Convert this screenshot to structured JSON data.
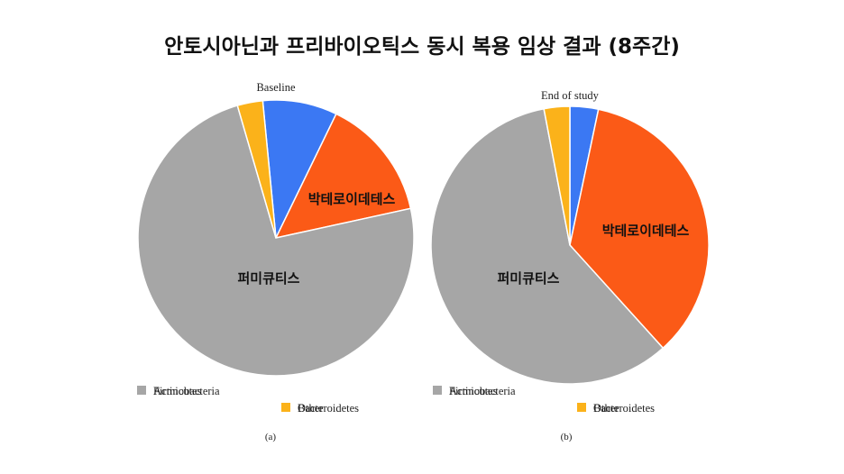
{
  "title": "안토시아닌과 프리바이오틱스 동시 복용 임상 결과 (8주간)",
  "chart_data": [
    {
      "type": "pie",
      "title": "Baseline",
      "panel_label": "(a)",
      "start_angle_deg": -5.5,
      "direction": "clockwise",
      "legend_position": "bottom",
      "slices": [
        {
          "name": "Actinobacteria",
          "value": 8.5,
          "color": "#3b78f3",
          "label": ""
        },
        {
          "name": "Bacteroidetes",
          "value": 14.0,
          "color": "#fb5a17",
          "label": "박테로이데테스"
        },
        {
          "name": "Firmicutes",
          "value": 72.0,
          "color": "#a6a6a6",
          "label": "퍼미큐티스"
        },
        {
          "name": "Other",
          "value": 2.9,
          "color": "#fbb21a",
          "label": ""
        }
      ]
    },
    {
      "type": "pie",
      "title": "End of study",
      "panel_label": "(b)",
      "start_angle_deg": 0,
      "direction": "clockwise",
      "legend_position": "bottom",
      "slices": [
        {
          "name": "Actinobacteria",
          "value": 3.3,
          "color": "#3b78f3",
          "label": ""
        },
        {
          "name": "Bacteroidetes",
          "value": 35.0,
          "color": "#fb5a17",
          "label": "박테로이데테스"
        },
        {
          "name": "Firmicutes",
          "value": 58.7,
          "color": "#a6a6a6",
          "label": "퍼미큐티스"
        },
        {
          "name": "Other",
          "value": 3.0,
          "color": "#fbb21a",
          "label": ""
        }
      ]
    }
  ]
}
